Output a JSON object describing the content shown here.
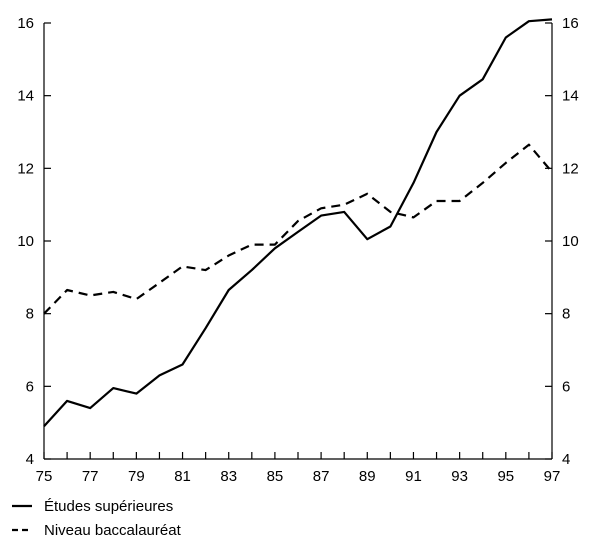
{
  "chart_data": {
    "type": "line",
    "x": [
      "75",
      "76",
      "77",
      "78",
      "79",
      "80",
      "81",
      "82",
      "83",
      "84",
      "85",
      "86",
      "87",
      "88",
      "89",
      "90",
      "91",
      "92",
      "93",
      "94",
      "95",
      "96",
      "97"
    ],
    "x_tick_labels": [
      "75",
      "77",
      "79",
      "81",
      "83",
      "85",
      "87",
      "89",
      "91",
      "93",
      "95",
      "97"
    ],
    "y_tick_labels": [
      "4",
      "6",
      "8",
      "10",
      "12",
      "14",
      "16"
    ],
    "ylim": [
      4,
      16
    ],
    "grid": false,
    "right_axis_mirrors_left": true,
    "legend_position": "bottom-left",
    "series": [
      {
        "name": "Études supérieures",
        "style": "solid",
        "color": "#000000",
        "values": [
          4.9,
          5.6,
          5.4,
          5.95,
          5.8,
          6.3,
          6.6,
          7.6,
          8.65,
          9.2,
          9.8,
          10.25,
          10.7,
          10.8,
          10.05,
          10.4,
          11.6,
          13.0,
          14.0,
          14.45,
          15.6,
          16.05,
          16.1
        ]
      },
      {
        "name": "Niveau baccalauréat",
        "style": "dashed",
        "color": "#000000",
        "values": [
          8.0,
          8.65,
          8.5,
          8.6,
          8.4,
          8.85,
          9.3,
          9.2,
          9.6,
          9.9,
          9.9,
          10.55,
          10.9,
          11.0,
          11.3,
          10.8,
          10.65,
          11.1,
          11.1,
          11.6,
          12.15,
          12.65,
          11.9
        ]
      }
    ]
  }
}
